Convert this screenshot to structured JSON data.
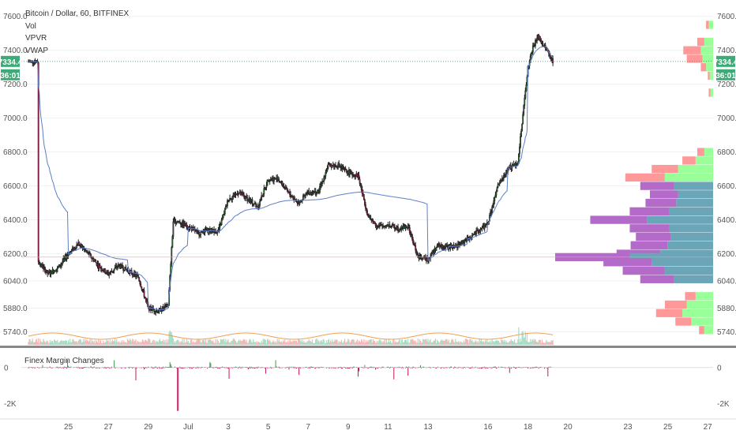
{
  "legend": {
    "symbol": "Bitcoin / Dollar, 60, BITFINEX",
    "vol": "Vol",
    "vpvr": "VPVR",
    "vwap": "VWAP"
  },
  "subpane": {
    "title": "Finex Margin Changes",
    "y_ticks": [
      "0",
      "-2K"
    ]
  },
  "price_axis": {
    "ticks": [
      "7600.0",
      "7400.0",
      "7200.0",
      "7000.0",
      "6800.0",
      "6600.0",
      "6400.0",
      "6200.0",
      "6040.0",
      "5880.0",
      "5740.0"
    ],
    "last_price": "7334.4",
    "countdown": "36:01"
  },
  "time_axis": {
    "ticks": [
      "25",
      "27",
      "29",
      "Jul",
      "3",
      "5",
      "7",
      "9",
      "11",
      "13",
      "16",
      "18",
      "20",
      "23",
      "25",
      "27"
    ]
  },
  "colors": {
    "up_candle": "#2e7d32",
    "down_candle": "#c2185b",
    "candle_outline": "#222222",
    "vwap_line": "#5b7fc7",
    "volume_ma": "#f0a050",
    "last_price_badge": "#3daa77",
    "vp_up": "#99ff99",
    "vp_down": "#ff9999",
    "va_up": "#6aa5b8",
    "va_down": "#b36ac8"
  },
  "chart_data": {
    "type": "candlestick",
    "symbol": "BTC/USD",
    "interval": "60",
    "x_start": "Jun 23",
    "x_end": "Jul 27",
    "ylim": [
      5700,
      7650
    ],
    "price_path": [
      [
        "Jun 23 12:00",
        6150
      ],
      [
        "Jun 24 00:00",
        6080
      ],
      [
        "Jun 24 12:00",
        6120
      ],
      [
        "Jun 25 00:00",
        6200
      ],
      [
        "Jun 25 12:00",
        6260
      ],
      [
        "Jun 26 00:00",
        6200
      ],
      [
        "Jun 26 12:00",
        6130
      ],
      [
        "Jun 27 00:00",
        6080
      ],
      [
        "Jun 27 12:00",
        6130
      ],
      [
        "Jun 28 00:00",
        6100
      ],
      [
        "Jun 28 12:00",
        6060
      ],
      [
        "Jun 29 00:00",
        5880
      ],
      [
        "Jun 29 12:00",
        5860
      ],
      [
        "Jun 30 00:00",
        5900
      ],
      [
        "Jun 30 06:00",
        6390
      ],
      [
        "Jun 30 12:00",
        6390
      ],
      [
        "Jul 1 00:00",
        6360
      ],
      [
        "Jul 1 12:00",
        6320
      ],
      [
        "Jul 2 00:00",
        6340
      ],
      [
        "Jul 2 12:00",
        6330
      ],
      [
        "Jul 3 00:00",
        6520
      ],
      [
        "Jul 3 12:00",
        6560
      ],
      [
        "Jul 4 00:00",
        6520
      ],
      [
        "Jul 4 12:00",
        6480
      ],
      [
        "Jul 5 00:00",
        6640
      ],
      [
        "Jul 5 12:00",
        6640
      ],
      [
        "Jul 6 00:00",
        6560
      ],
      [
        "Jul 6 12:00",
        6500
      ],
      [
        "Jul 7 00:00",
        6560
      ],
      [
        "Jul 7 12:00",
        6560
      ],
      [
        "Jul 8 00:00",
        6720
      ],
      [
        "Jul 8 12:00",
        6720
      ],
      [
        "Jul 9 00:00",
        6680
      ],
      [
        "Jul 9 12:00",
        6660
      ],
      [
        "Jul 10 00:00",
        6420
      ],
      [
        "Jul 10 12:00",
        6360
      ],
      [
        "Jul 11 00:00",
        6370
      ],
      [
        "Jul 11 12:00",
        6350
      ],
      [
        "Jul 12 00:00",
        6360
      ],
      [
        "Jul 12 12:00",
        6180
      ],
      [
        "Jul 13 00:00",
        6170
      ],
      [
        "Jul 13 12:00",
        6250
      ],
      [
        "Jul 14 00:00",
        6240
      ],
      [
        "Jul 14 12:00",
        6250
      ],
      [
        "Jul 15 00:00",
        6290
      ],
      [
        "Jul 15 12:00",
        6330
      ],
      [
        "Jul 16 00:00",
        6380
      ],
      [
        "Jul 16 12:00",
        6600
      ],
      [
        "Jul 17 00:00",
        6700
      ],
      [
        "Jul 17 12:00",
        6740
      ],
      [
        "Jul 18 00:00",
        7300
      ],
      [
        "Jul 18 06:00",
        7420
      ],
      [
        "Jul 18 12:00",
        7480
      ],
      [
        "Jul 19 00:00",
        7390
      ],
      [
        "Jul 19 06:00",
        7334
      ]
    ],
    "volume_profile": [
      {
        "price": 7550,
        "up": 5,
        "down": 3
      },
      {
        "price": 7450,
        "up": 10,
        "down": 8
      },
      {
        "price": 7400,
        "up": 14,
        "down": 20
      },
      {
        "price": 7350,
        "up": 12,
        "down": 18
      },
      {
        "price": 7300,
        "up": 8,
        "down": 6
      },
      {
        "price": 7250,
        "up": 4,
        "down": 2
      },
      {
        "price": 7150,
        "up": 3,
        "down": 2
      },
      {
        "price": 6800,
        "up": 10,
        "down": 8
      },
      {
        "price": 6750,
        "up": 20,
        "down": 15
      },
      {
        "price": 6700,
        "up": 40,
        "down": 30
      },
      {
        "price": 6650,
        "up": 55,
        "down": 45
      },
      {
        "price": 6600,
        "up": 45,
        "down": 38
      },
      {
        "price": 6550,
        "up": 40,
        "down": 32
      },
      {
        "price": 6500,
        "up": 42,
        "down": 35
      },
      {
        "price": 6450,
        "up": 50,
        "down": 45
      },
      {
        "price": 6400,
        "up": 75,
        "down": 65
      },
      {
        "price": 6350,
        "up": 50,
        "down": 45
      },
      {
        "price": 6300,
        "up": 48,
        "down": 40
      },
      {
        "price": 6250,
        "up": 52,
        "down": 42
      },
      {
        "price": 6200,
        "up": 60,
        "down": 50
      },
      {
        "price": 6180,
        "up": 95,
        "down": 85
      },
      {
        "price": 6150,
        "up": 70,
        "down": 55
      },
      {
        "price": 6100,
        "up": 55,
        "down": 48
      },
      {
        "price": 6050,
        "up": 45,
        "down": 38
      },
      {
        "price": 5950,
        "up": 20,
        "down": 12
      },
      {
        "price": 5900,
        "up": 30,
        "down": 25
      },
      {
        "price": 5850,
        "up": 35,
        "down": 30
      },
      {
        "price": 5800,
        "up": 25,
        "down": 18
      },
      {
        "price": 5750,
        "up": 10,
        "down": 6
      }
    ],
    "value_area": [
      6040,
      6600
    ],
    "point_of_control": 6180,
    "last_price": 7334.4,
    "volume_ma_level": "low",
    "subpane": {
      "name": "Finex Margin Changes",
      "ylim": [
        -2500,
        1000
      ]
    }
  }
}
